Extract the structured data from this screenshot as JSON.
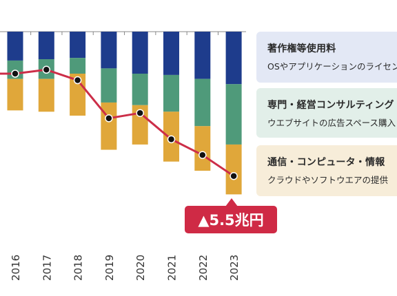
{
  "chart_data": {
    "type": "bar",
    "categories": [
      "2016",
      "2017",
      "2018",
      "2019",
      "2020",
      "2021",
      "2022",
      "2023"
    ],
    "series": [
      {
        "name": "著作権等使用料",
        "kind": "stacked-bar",
        "color": "#1e3c8c",
        "values": [
          1.1,
          1.05,
          1.0,
          1.4,
          1.6,
          1.65,
          1.8,
          2.0
        ]
      },
      {
        "name": "専門・経営コンサルティング",
        "kind": "stacked-bar",
        "color": "#4f9a7a",
        "values": [
          0.7,
          0.75,
          0.6,
          1.3,
          1.2,
          1.4,
          1.8,
          2.3
        ]
      },
      {
        "name": "通信・コンピュータ・情報",
        "kind": "stacked-bar",
        "color": "#e0a73a",
        "values": [
          1.2,
          1.25,
          1.6,
          1.8,
          1.5,
          1.9,
          1.7,
          1.9
        ]
      },
      {
        "name": "",
        "kind": "line",
        "color": "#cc2e48",
        "values": [
          -1.6,
          -1.45,
          -1.85,
          -3.3,
          -3.1,
          -4.1,
          -4.7,
          -5.5
        ]
      }
    ],
    "ylim": [
      -6.4,
      0.0
    ],
    "grid": false,
    "legend": "right"
  },
  "legend": [
    {
      "title": "著作権等使用料",
      "desc": "OSやアプリケーションのライセンス料"
    },
    {
      "title": "専門・経営コンサルティング",
      "desc": "ウエブサイトの広告スペース購入"
    },
    {
      "title": "通信・コンピュータ・情報",
      "desc": "クラウドやソフトウエアの提供"
    }
  ],
  "callout": {
    "text": "▲5.5兆円",
    "color": "#cf2a45"
  }
}
